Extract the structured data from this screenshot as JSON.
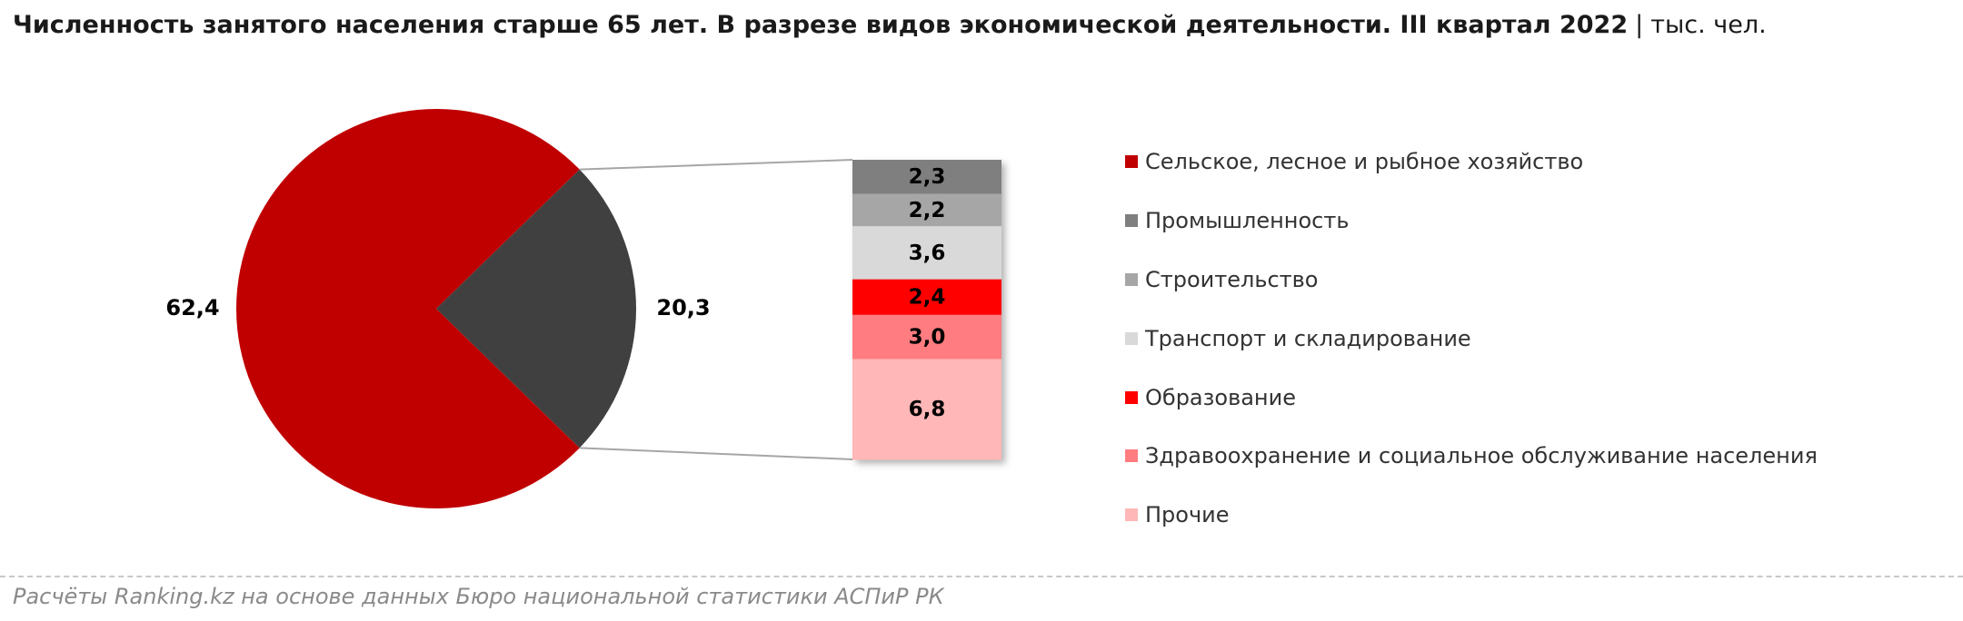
{
  "title": {
    "main": "Численность занятого населения старше 65 лет. В разрезе видов экономической деятельности. III квартал 2022",
    "separator": "|",
    "unit": "тыс. чел."
  },
  "source": "Расчёты Ranking.kz на основе данных Бюро национальной статистики АСПиР РК",
  "chart_data": {
    "type": "pie",
    "subtype": "bar-of-pie",
    "pie": [
      {
        "label": "62,4",
        "value": 62.4,
        "color": "#c00000"
      },
      {
        "label": "20,3",
        "value": 20.3,
        "color": "#404040"
      }
    ],
    "bar": [
      {
        "name": "Промышленность",
        "label": "2,3",
        "value": 2.3,
        "color": "#7f7f7f",
        "text_color": "#000000"
      },
      {
        "name": "Строительство",
        "label": "2,2",
        "value": 2.2,
        "color": "#a6a6a6",
        "text_color": "#000000"
      },
      {
        "name": "Транспорт и складирование",
        "label": "3,6",
        "value": 3.6,
        "color": "#d9d9d9",
        "text_color": "#000000"
      },
      {
        "name": "Образование",
        "label": "2,4",
        "value": 2.4,
        "color": "#ff0000",
        "text_color": "#000000"
      },
      {
        "name": "Здравоохранение и социальное обслуживание населения",
        "label": "3,0",
        "value": 3.0,
        "color": "#ff7c80",
        "text_color": "#000000"
      },
      {
        "name": "Прочие",
        "label": "6,8",
        "value": 6.8,
        "color": "#ffb7b7",
        "text_color": "#000000"
      }
    ],
    "legend": [
      {
        "label": "Сельское, лесное и рыбное хозяйство",
        "color": "#c00000"
      },
      {
        "label": "Промышленность",
        "color": "#7f7f7f"
      },
      {
        "label": "Строительство",
        "color": "#a6a6a6"
      },
      {
        "label": "Транспорт и складирование",
        "color": "#d9d9d9"
      },
      {
        "label": "Образование",
        "color": "#ff0000"
      },
      {
        "label": "Здравоохранение и социальное обслуживание населения",
        "color": "#ff7c80"
      },
      {
        "label": "Прочие",
        "color": "#ffb7b7"
      }
    ],
    "legend_position": "right"
  }
}
